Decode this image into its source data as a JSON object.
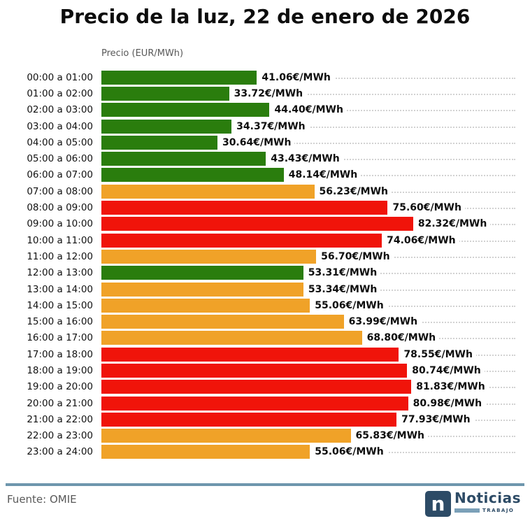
{
  "title": "Precio de la luz, 22 de enero de 2026",
  "axis_label": "Precio (EUR/MWh)",
  "colors": {
    "green": "#2a7d0d",
    "orange": "#f0a228",
    "red": "#f0140a",
    "separator": "#6e96ad",
    "navy": "#2d4b66",
    "lightblue": "#7ba0b8",
    "muted_text": "#595959",
    "gridline": "#d2d2d2"
  },
  "chart_data": {
    "type": "bar",
    "orientation": "horizontal",
    "title": "Precio de la luz, 22 de enero de 2026",
    "xlabel": "Precio (EUR/MWh)",
    "xlim": [
      0,
      109.3
    ],
    "grid": "dotted-horizontal-per-row",
    "legend": "none",
    "categories": [
      "00:00 a 01:00",
      "01:00 a 02:00",
      "02:00 a 03:00",
      "03:00 a 04:00",
      "04:00 a 05:00",
      "05:00 a 06:00",
      "06:00 a 07:00",
      "07:00 a 08:00",
      "08:00 a 09:00",
      "09:00 a 10:00",
      "10:00 a 11:00",
      "11:00 a 12:00",
      "12:00 a 13:00",
      "13:00 a 14:00",
      "14:00 a 15:00",
      "15:00 a 16:00",
      "16:00 a 17:00",
      "17:00 a 18:00",
      "18:00 a 19:00",
      "19:00 a 20:00",
      "20:00 a 21:00",
      "21:00 a 22:00",
      "22:00 a 23:00",
      "23:00 a 24:00"
    ],
    "values": [
      41.06,
      33.72,
      44.4,
      34.37,
      30.64,
      43.43,
      48.14,
      56.23,
      75.6,
      82.32,
      74.06,
      56.7,
      53.31,
      53.34,
      55.06,
      63.99,
      68.8,
      78.55,
      80.74,
      81.83,
      80.98,
      77.93,
      65.83,
      55.06
    ],
    "value_labels": [
      "41.06€/MWh",
      "33.72€/MWh",
      "44.40€/MWh",
      "34.37€/MWh",
      "30.64€/MWh",
      "43.43€/MWh",
      "48.14€/MWh",
      "56.23€/MWh",
      "75.60€/MWh",
      "82.32€/MWh",
      "74.06€/MWh",
      "56.70€/MWh",
      "53.31€/MWh",
      "53.34€/MWh",
      "55.06€/MWh",
      "63.99€/MWh",
      "68.80€/MWh",
      "78.55€/MWh",
      "80.74€/MWh",
      "81.83€/MWh",
      "80.98€/MWh",
      "77.93€/MWh",
      "65.83€/MWh",
      "55.06€/MWh"
    ],
    "bar_colors": [
      "green",
      "green",
      "green",
      "green",
      "green",
      "green",
      "green",
      "orange",
      "red",
      "red",
      "red",
      "orange",
      "green",
      "orange",
      "orange",
      "orange",
      "orange",
      "red",
      "red",
      "red",
      "red",
      "red",
      "orange",
      "orange"
    ]
  },
  "footer": {
    "source": "Fuente: OMIE"
  },
  "logo": {
    "letter": "n",
    "brand": "Noticias",
    "sub": "TRABAJO"
  }
}
